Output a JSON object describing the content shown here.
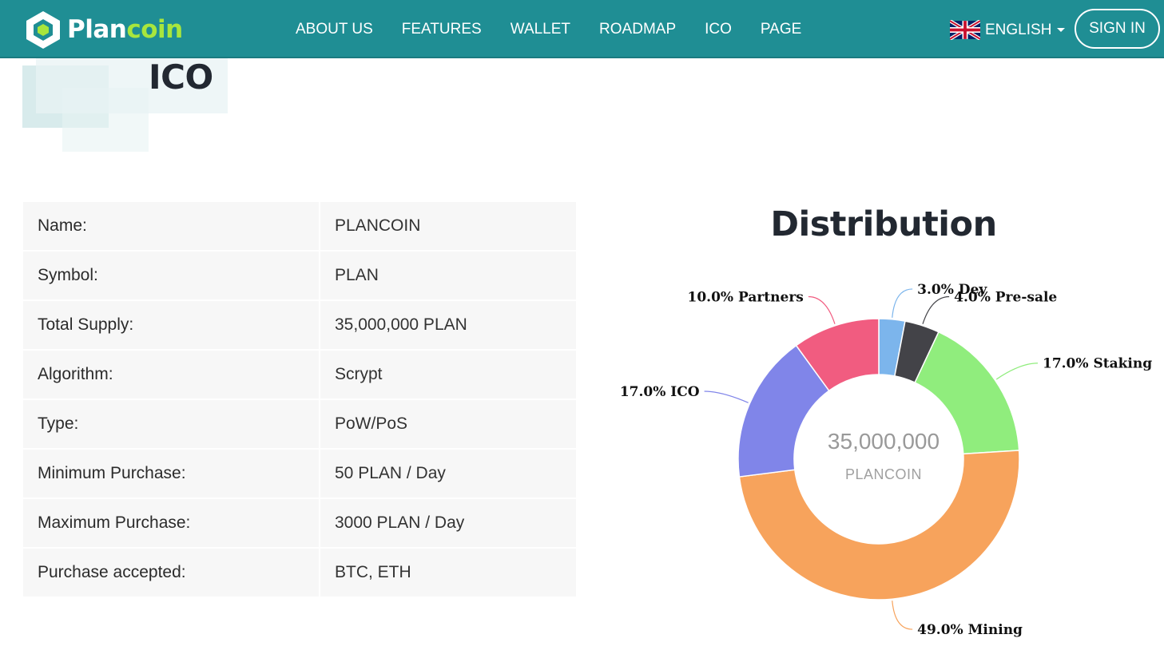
{
  "header": {
    "logo_text_1": "Plan",
    "logo_text_2": "coin",
    "nav": [
      "ABOUT US",
      "FEATURES",
      "WALLET",
      "ROADMAP",
      "ICO",
      "PAGE"
    ],
    "language": "ENGLISH",
    "signin_label": "SIGN IN"
  },
  "page": {
    "title": "ICO"
  },
  "info": [
    {
      "key": "Name:",
      "value": "PLANCOIN"
    },
    {
      "key": "Symbol:",
      "value": "PLAN"
    },
    {
      "key": "Total Supply:",
      "value": "35,000,000 PLAN"
    },
    {
      "key": "Algorithm:",
      "value": "Scrypt"
    },
    {
      "key": "Type:",
      "value": "PoW/PoS"
    },
    {
      "key": "Minimum Purchase:",
      "value": "50 PLAN / Day"
    },
    {
      "key": "Maximum Purchase:",
      "value": "3000 PLAN / Day"
    },
    {
      "key": "Purchase accepted:",
      "value": "BTC, ETH"
    }
  ],
  "distribution": {
    "title": "Distribution",
    "center_value": "35,000,000",
    "center_label": "PLANCOIN"
  },
  "chart_data": {
    "type": "pie",
    "donut": true,
    "title": "Distribution",
    "slices": [
      {
        "label": "3.0% Dev",
        "name": "Dev",
        "value": 3.0,
        "color": "#7cb5ec"
      },
      {
        "label": "4.0% Pre-sale",
        "name": "Pre-sale",
        "value": 4.0,
        "color": "#434348"
      },
      {
        "label": "17.0% Staking",
        "name": "Staking",
        "value": 17.0,
        "color": "#90ed7d"
      },
      {
        "label": "49.0% Mining",
        "name": "Mining",
        "value": 49.0,
        "color": "#f7a35c"
      },
      {
        "label": "17.0% ICO",
        "name": "ICO",
        "value": 17.0,
        "color": "#8085e9"
      },
      {
        "label": "10.0% Partners",
        "name": "Partners",
        "value": 10.0,
        "color": "#f15c80"
      }
    ]
  },
  "colors": {
    "header_bg": "#1f8e94",
    "logo_accent": "#a8e63d",
    "table_bg": "#f7f7f7"
  }
}
